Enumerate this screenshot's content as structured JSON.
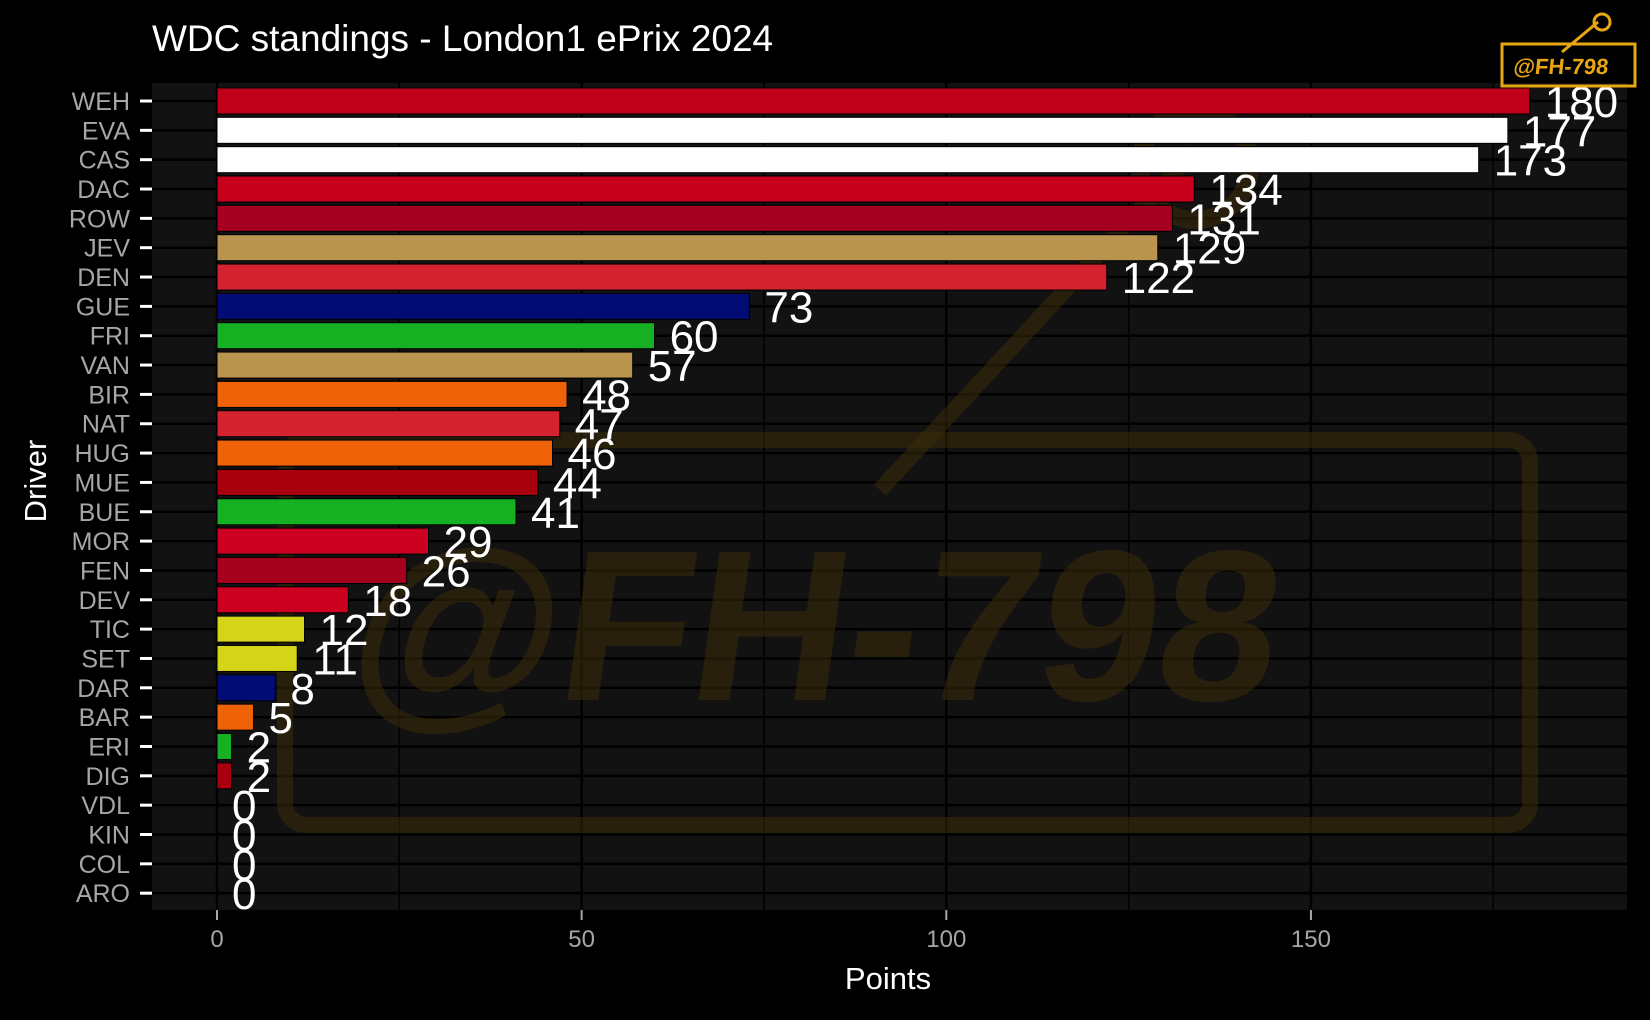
{
  "chart_data": {
    "type": "bar",
    "orientation": "horizontal",
    "title": "WDC standings - London1 ePrix 2024",
    "xlabel": "Points",
    "ylabel": "Driver",
    "xlim": [
      -9,
      193
    ],
    "xticks": [
      0,
      50,
      100,
      150
    ],
    "grid": true,
    "categories": [
      "WEH",
      "EVA",
      "CAS",
      "DAC",
      "ROW",
      "JEV",
      "DEN",
      "GUE",
      "FRI",
      "VAN",
      "BIR",
      "NAT",
      "HUG",
      "MUE",
      "BUE",
      "MOR",
      "FEN",
      "DEV",
      "TIC",
      "SET",
      "DAR",
      "BAR",
      "ERI",
      "DIG",
      "VDL",
      "KIN",
      "COL",
      "ARO"
    ],
    "values": [
      180,
      177,
      173,
      134,
      131,
      129,
      122,
      73,
      60,
      57,
      48,
      47,
      46,
      44,
      41,
      29,
      26,
      18,
      12,
      11,
      8,
      5,
      2,
      2,
      0,
      0,
      0,
      0
    ],
    "colors": [
      "#c0001a",
      "#ffffff",
      "#ffffff",
      "#c8001e",
      "#a50020",
      "#b8944f",
      "#d42230",
      "#030c74",
      "#16b023",
      "#b8944f",
      "#f06208",
      "#d42230",
      "#f06208",
      "#a8000e",
      "#16b023",
      "#cc0020",
      "#a5001e",
      "#cc0020",
      "#d4d418",
      "#d4d418",
      "#030c74",
      "#f06208",
      "#16b023",
      "#a8000e",
      "#cccccc",
      "#cccccc",
      "#cccccc",
      "#cccccc"
    ]
  },
  "watermark": {
    "text": "@FH-798"
  },
  "colors": {
    "background": "#000000",
    "panel": "#121212",
    "grid": "#000000"
  }
}
